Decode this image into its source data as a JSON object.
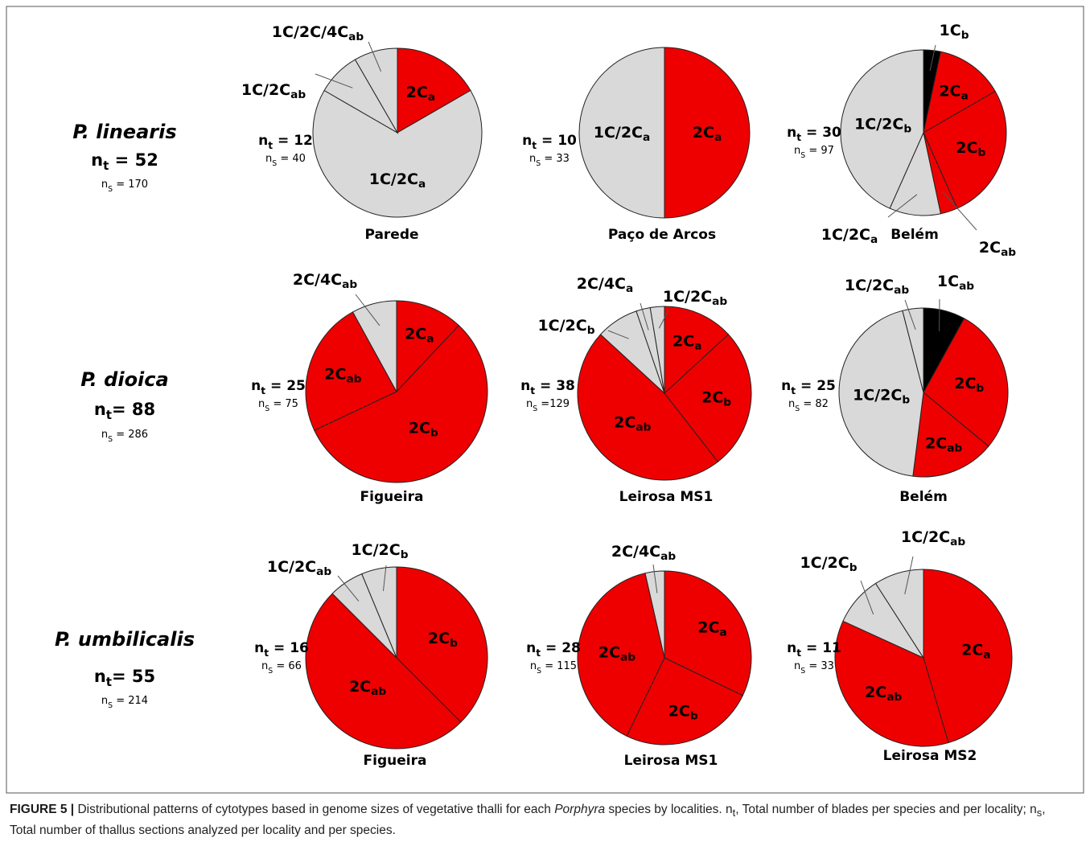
{
  "species": [
    {
      "name": "P. linearis",
      "count": [
        "n",
        {
          "sub": "t"
        },
        " = 52"
      ],
      "sections": [
        "n",
        {
          "sub": "S"
        },
        " = 170"
      ]
    },
    {
      "name": "P. dioica",
      "count": [
        "n",
        {
          "sub": "t"
        },
        "= 88"
      ],
      "sections": [
        "n",
        {
          "sub": "S"
        },
        " = 286"
      ]
    },
    {
      "name": "P. umbilicalis",
      "count": [
        "n",
        {
          "sub": "t"
        },
        "= 55"
      ],
      "sections": [
        "n",
        {
          "sub": "S"
        },
        " = 214"
      ]
    }
  ],
  "chart_data": [
    {
      "type": "pie",
      "title": "Parede",
      "annotations": [
        [
          "n",
          {
            "sub": "t"
          },
          " = 12"
        ],
        [
          "n",
          {
            "sub": "S"
          },
          " = 40"
        ]
      ],
      "labels": [
        [
          "2C",
          {
            "sub": "a"
          }
        ],
        [
          "1C/2C",
          {
            "sub": "a"
          }
        ],
        [
          "1C/2C",
          {
            "sub": "ab"
          }
        ],
        [
          "1C/2C/4C",
          {
            "sub": "ab"
          }
        ]
      ],
      "values": [
        2,
        8,
        1,
        1
      ],
      "colors": [
        "#ee0000",
        "#d9d9d9",
        "#d9d9d9",
        "#d9d9d9"
      ]
    },
    {
      "type": "pie",
      "title": "Paço de Arcos",
      "annotations": [
        [
          "n",
          {
            "sub": "t"
          },
          " = 10"
        ],
        [
          "n",
          {
            "sub": "S"
          },
          " = 33"
        ]
      ],
      "labels": [
        [
          "2C",
          {
            "sub": "a"
          }
        ],
        [
          "1C/2C",
          {
            "sub": "a"
          }
        ]
      ],
      "values": [
        5,
        5
      ],
      "colors": [
        "#ee0000",
        "#d9d9d9"
      ]
    },
    {
      "type": "pie",
      "title": "Belém",
      "annotations": [
        [
          "n",
          {
            "sub": "t"
          },
          " = 30"
        ],
        [
          "n",
          {
            "sub": "S"
          },
          " = 97"
        ]
      ],
      "labels": [
        [
          "1C",
          {
            "sub": "b"
          }
        ],
        [
          "2C",
          {
            "sub": "a"
          }
        ],
        [
          "2C",
          {
            "sub": "b"
          }
        ],
        [
          "2C",
          {
            "sub": "ab"
          }
        ],
        [
          "1C/2C",
          {
            "sub": "a"
          }
        ],
        [
          "1C/2C",
          {
            "sub": "b"
          }
        ]
      ],
      "values": [
        1,
        4,
        8,
        1,
        3,
        13
      ],
      "colors": [
        "#000000",
        "#ee0000",
        "#ee0000",
        "#ee0000",
        "#d9d9d9",
        "#d9d9d9"
      ]
    },
    {
      "type": "pie",
      "title": "Figueira",
      "annotations": [
        [
          "n",
          {
            "sub": "t"
          },
          " = 25"
        ],
        [
          "n",
          {
            "sub": "S"
          },
          " = 75"
        ]
      ],
      "labels": [
        [
          "2C",
          {
            "sub": "a"
          }
        ],
        [
          "2C",
          {
            "sub": "b"
          }
        ],
        [
          "2C",
          {
            "sub": "ab"
          }
        ],
        [
          "2C/4C",
          {
            "sub": "ab"
          }
        ]
      ],
      "values": [
        3,
        14,
        6,
        2
      ],
      "colors": [
        "#ee0000",
        "#ee0000",
        "#ee0000",
        "#d9d9d9"
      ]
    },
    {
      "type": "pie",
      "title": "Leirosa MS1",
      "annotations": [
        [
          "n",
          {
            "sub": "t"
          },
          " = 38"
        ],
        [
          "n",
          {
            "sub": "S"
          },
          " =129"
        ]
      ],
      "labels": [
        [
          "2C",
          {
            "sub": "a"
          }
        ],
        [
          "2C",
          {
            "sub": "b"
          }
        ],
        [
          "2C",
          {
            "sub": "ab"
          }
        ],
        [
          "1C/2C",
          {
            "sub": "b"
          }
        ],
        [
          "2C/4C",
          {
            "sub": "a"
          }
        ],
        [
          "1C/2C",
          {
            "sub": "ab"
          }
        ]
      ],
      "values": [
        5,
        10,
        18,
        3,
        1,
        1
      ],
      "colors": [
        "#ee0000",
        "#ee0000",
        "#ee0000",
        "#d9d9d9",
        "#d9d9d9",
        "#d9d9d9"
      ]
    },
    {
      "type": "pie",
      "title": "Belém",
      "annotations": [
        [
          "n",
          {
            "sub": "t"
          },
          " = 25"
        ],
        [
          "n",
          {
            "sub": "S"
          },
          " = 82"
        ]
      ],
      "labels": [
        [
          "1C",
          {
            "sub": "ab"
          }
        ],
        [
          "2C",
          {
            "sub": "b"
          }
        ],
        [
          "2C",
          {
            "sub": "ab"
          }
        ],
        [
          "1C/2C",
          {
            "sub": "b"
          }
        ],
        [
          "1C/2C",
          {
            "sub": "ab"
          }
        ]
      ],
      "values": [
        2,
        7,
        4,
        11,
        1
      ],
      "colors": [
        "#000000",
        "#ee0000",
        "#ee0000",
        "#d9d9d9",
        "#d9d9d9"
      ]
    },
    {
      "type": "pie",
      "title": "Figueira",
      "annotations": [
        [
          "n",
          {
            "sub": "t"
          },
          " = 16"
        ],
        [
          "n",
          {
            "sub": "S"
          },
          " = 66"
        ]
      ],
      "labels": [
        [
          "2C",
          {
            "sub": "b"
          }
        ],
        [
          "2C",
          {
            "sub": "ab"
          }
        ],
        [
          "1C/2C",
          {
            "sub": "ab"
          }
        ],
        [
          "1C/2C",
          {
            "sub": "b"
          }
        ]
      ],
      "values": [
        6,
        8,
        1,
        1
      ],
      "colors": [
        "#ee0000",
        "#ee0000",
        "#d9d9d9",
        "#d9d9d9"
      ]
    },
    {
      "type": "pie",
      "title": "Leirosa MS1",
      "annotations": [
        [
          "n",
          {
            "sub": "t"
          },
          " = 28"
        ],
        [
          "n",
          {
            "sub": "S"
          },
          " = 115"
        ]
      ],
      "labels": [
        [
          "2C",
          {
            "sub": "a"
          }
        ],
        [
          "2C",
          {
            "sub": "b"
          }
        ],
        [
          "2C",
          {
            "sub": "ab"
          }
        ],
        [
          "2C/4C",
          {
            "sub": "ab"
          }
        ]
      ],
      "values": [
        9,
        7,
        11,
        1
      ],
      "colors": [
        "#ee0000",
        "#ee0000",
        "#ee0000",
        "#d9d9d9"
      ]
    },
    {
      "type": "pie",
      "title": "Leirosa MS2",
      "annotations": [
        [
          "n",
          {
            "sub": "t"
          },
          " = 11"
        ],
        [
          "n",
          {
            "sub": "S"
          },
          " = 33"
        ]
      ],
      "labels": [
        [
          "2C",
          {
            "sub": "a"
          }
        ],
        [
          "2C",
          {
            "sub": "ab"
          }
        ],
        [
          "1C/2C",
          {
            "sub": "b"
          }
        ],
        [
          "1C/2C",
          {
            "sub": "ab"
          }
        ]
      ],
      "values": [
        5,
        4,
        1,
        1
      ],
      "colors": [
        "#ee0000",
        "#ee0000",
        "#d9d9d9",
        "#d9d9d9"
      ]
    }
  ],
  "caption": [
    {
      "b": "FIGURE 5 |"
    },
    " Distributional patterns of cytotypes based in genome sizes of vegetative thalli for each ",
    {
      "i": "Porphyra"
    },
    " species by localities. n",
    {
      "sub": "t"
    },
    ", Total number of blades per species and per locality; n",
    {
      "sub": "s"
    },
    ", Total number of thallus sections analyzed per locality and per species."
  ]
}
